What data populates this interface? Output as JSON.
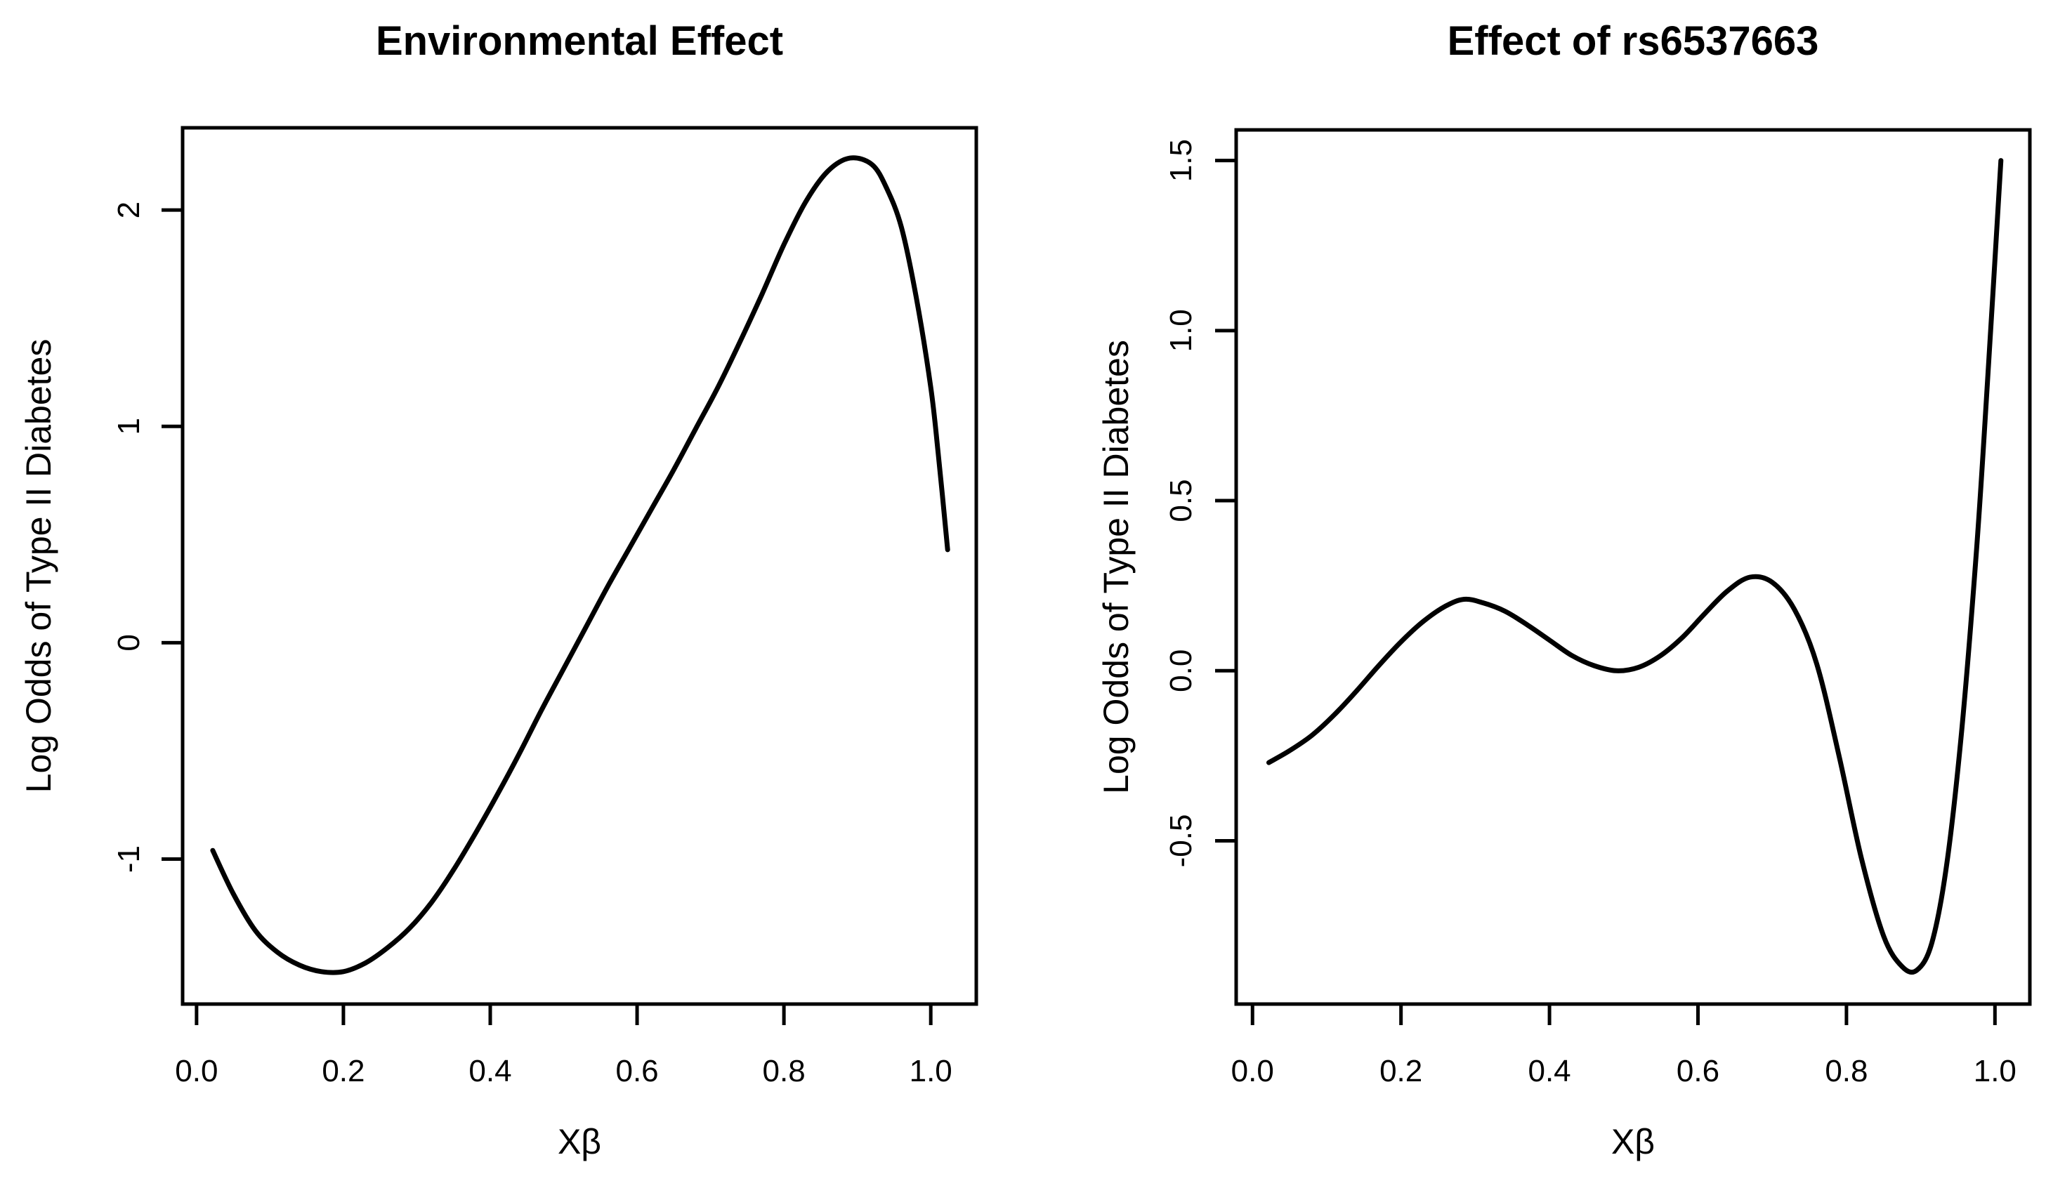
{
  "page": {
    "background": "#ffffff",
    "foreground": "#000000"
  },
  "chart_data": [
    {
      "id": "environmental-effect",
      "type": "line",
      "title": "Environmental Effect",
      "xlabel": "Xβ",
      "ylabel": "Log Odds of Type II Diabetes",
      "xlim": [
        -0.019,
        1.062
      ],
      "ylim": [
        -1.67,
        2.38
      ],
      "grid": false,
      "legend": null,
      "line_color": "#000000",
      "xticks": {
        "values": [
          0.0,
          0.2,
          0.4,
          0.6,
          0.8,
          1.0
        ],
        "labels": [
          "0.0",
          "0.2",
          "0.4",
          "0.6",
          "0.8",
          "1.0"
        ]
      },
      "yticks": {
        "values": [
          -1,
          0,
          1,
          2
        ],
        "labels": [
          "-1",
          "0",
          "1",
          "2"
        ]
      },
      "series": [
        {
          "name": "environmental-effect-curve",
          "points": [
            [
              0.022,
              -0.96
            ],
            [
              0.05,
              -1.16
            ],
            [
              0.08,
              -1.33
            ],
            [
              0.11,
              -1.43
            ],
            [
              0.14,
              -1.49
            ],
            [
              0.17,
              -1.52
            ],
            [
              0.2,
              -1.52
            ],
            [
              0.23,
              -1.48
            ],
            [
              0.26,
              -1.41
            ],
            [
              0.29,
              -1.32
            ],
            [
              0.32,
              -1.2
            ],
            [
              0.35,
              -1.05
            ],
            [
              0.38,
              -0.88
            ],
            [
              0.41,
              -0.7
            ],
            [
              0.44,
              -0.51
            ],
            [
              0.47,
              -0.31
            ],
            [
              0.5,
              -0.12
            ],
            [
              0.53,
              0.07
            ],
            [
              0.56,
              0.26
            ],
            [
              0.59,
              0.44
            ],
            [
              0.62,
              0.62
            ],
            [
              0.65,
              0.8
            ],
            [
              0.68,
              0.99
            ],
            [
              0.71,
              1.18
            ],
            [
              0.74,
              1.39
            ],
            [
              0.77,
              1.61
            ],
            [
              0.8,
              1.84
            ],
            [
              0.83,
              2.04
            ],
            [
              0.86,
              2.18
            ],
            [
              0.89,
              2.24
            ],
            [
              0.92,
              2.21
            ],
            [
              0.94,
              2.1
            ],
            [
              0.96,
              1.92
            ],
            [
              0.98,
              1.6
            ],
            [
              1.0,
              1.18
            ],
            [
              1.01,
              0.88
            ],
            [
              1.023,
              0.43
            ]
          ]
        }
      ]
    },
    {
      "id": "rs6537663-effect",
      "type": "line",
      "title": "Effect of rs6537663",
      "xlabel": "Xβ",
      "ylabel": "Log Odds of Type II Diabetes",
      "xlim": [
        -0.022,
        1.047
      ],
      "ylim": [
        -0.98,
        1.59
      ],
      "grid": false,
      "legend": null,
      "line_color": "#000000",
      "xticks": {
        "values": [
          0.0,
          0.2,
          0.4,
          0.6,
          0.8,
          1.0
        ],
        "labels": [
          "0.0",
          "0.2",
          "0.4",
          "0.6",
          "0.8",
          "1.0"
        ]
      },
      "yticks": {
        "values": [
          -0.5,
          0.0,
          0.5,
          1.0,
          1.5
        ],
        "labels": [
          "-0.5",
          "0.0",
          "0.5",
          "1.0",
          "1.5"
        ]
      },
      "series": [
        {
          "name": "rs6537663-effect-curve",
          "points": [
            [
              0.022,
              -0.27
            ],
            [
              0.05,
              -0.235
            ],
            [
              0.08,
              -0.19
            ],
            [
              0.11,
              -0.13
            ],
            [
              0.14,
              -0.06
            ],
            [
              0.17,
              0.015
            ],
            [
              0.2,
              0.085
            ],
            [
              0.23,
              0.145
            ],
            [
              0.26,
              0.19
            ],
            [
              0.285,
              0.21
            ],
            [
              0.31,
              0.2
            ],
            [
              0.34,
              0.175
            ],
            [
              0.37,
              0.135
            ],
            [
              0.4,
              0.09
            ],
            [
              0.43,
              0.045
            ],
            [
              0.46,
              0.015
            ],
            [
              0.49,
              0.0
            ],
            [
              0.52,
              0.01
            ],
            [
              0.55,
              0.045
            ],
            [
              0.58,
              0.1
            ],
            [
              0.61,
              0.17
            ],
            [
              0.64,
              0.235
            ],
            [
              0.67,
              0.275
            ],
            [
              0.7,
              0.26
            ],
            [
              0.73,
              0.18
            ],
            [
              0.76,
              0.02
            ],
            [
              0.79,
              -0.25
            ],
            [
              0.82,
              -0.55
            ],
            [
              0.85,
              -0.78
            ],
            [
              0.875,
              -0.87
            ],
            [
              0.895,
              -0.88
            ],
            [
              0.915,
              -0.8
            ],
            [
              0.935,
              -0.57
            ],
            [
              0.955,
              -0.18
            ],
            [
              0.975,
              0.35
            ],
            [
              0.99,
              0.85
            ],
            [
              1.008,
              1.5
            ]
          ]
        }
      ]
    }
  ]
}
